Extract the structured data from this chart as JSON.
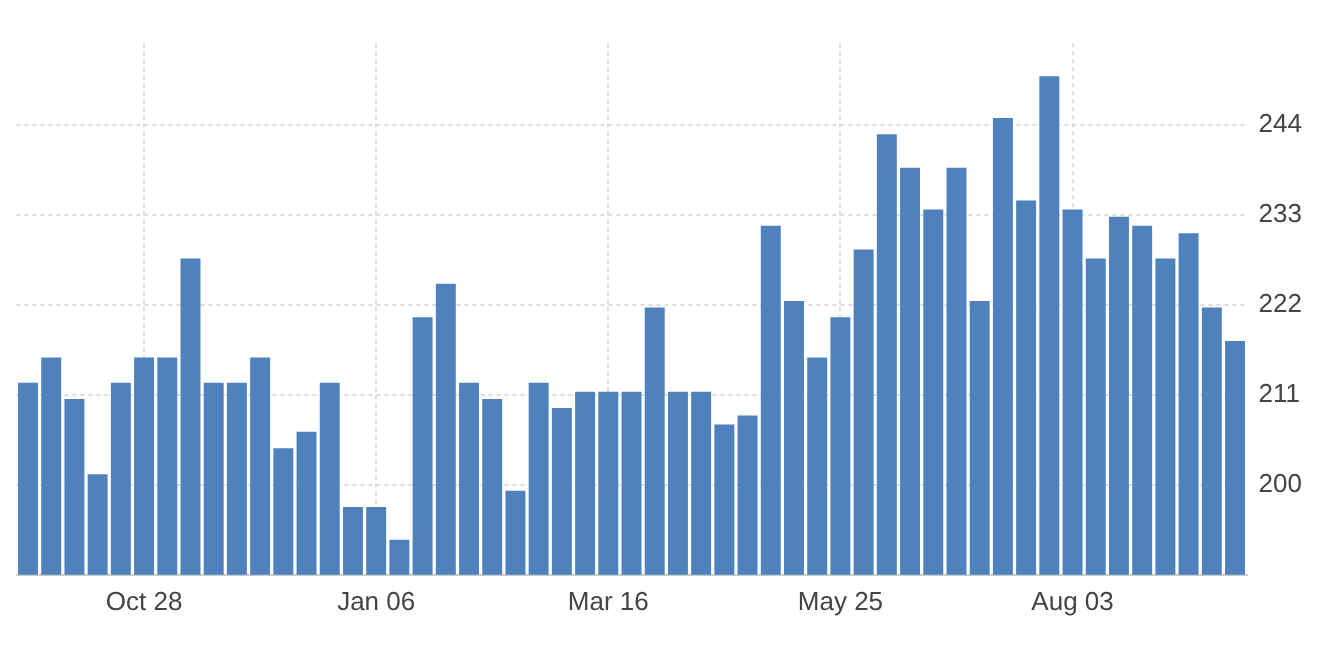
{
  "chart_data": {
    "type": "bar",
    "categories": [
      null,
      null,
      null,
      null,
      null,
      "Oct 28",
      null,
      null,
      null,
      null,
      null,
      null,
      null,
      null,
      null,
      "Jan 06",
      null,
      null,
      null,
      null,
      null,
      null,
      null,
      null,
      null,
      "Mar 16",
      null,
      null,
      null,
      null,
      null,
      null,
      null,
      null,
      null,
      "May 25",
      null,
      null,
      null,
      null,
      null,
      null,
      null,
      null,
      null,
      "Aug 03",
      null,
      null,
      null,
      null,
      null,
      null,
      null
    ],
    "values": [
      212.5,
      215.6,
      210.5,
      201.3,
      212.5,
      215.6,
      215.6,
      227.7,
      212.5,
      212.5,
      215.6,
      204.5,
      206.5,
      212.5,
      197.3,
      197.3,
      193.3,
      220.5,
      224.6,
      212.5,
      210.5,
      199.3,
      212.5,
      209.4,
      211.4,
      211.4,
      211.4,
      221.7,
      211.4,
      211.4,
      207.4,
      208.5,
      231.7,
      222.5,
      215.6,
      220.5,
      228.8,
      242.9,
      238.8,
      233.7,
      238.8,
      222.5,
      244.9,
      234.8,
      250.0,
      233.7,
      227.7,
      232.8,
      231.7,
      227.7,
      230.8,
      221.7,
      217.6
    ],
    "color": "#4f81bd",
    "ylim": [
      189,
      254
    ],
    "yticks": [
      200,
      211,
      222,
      233,
      244
    ],
    "grid": true
  }
}
